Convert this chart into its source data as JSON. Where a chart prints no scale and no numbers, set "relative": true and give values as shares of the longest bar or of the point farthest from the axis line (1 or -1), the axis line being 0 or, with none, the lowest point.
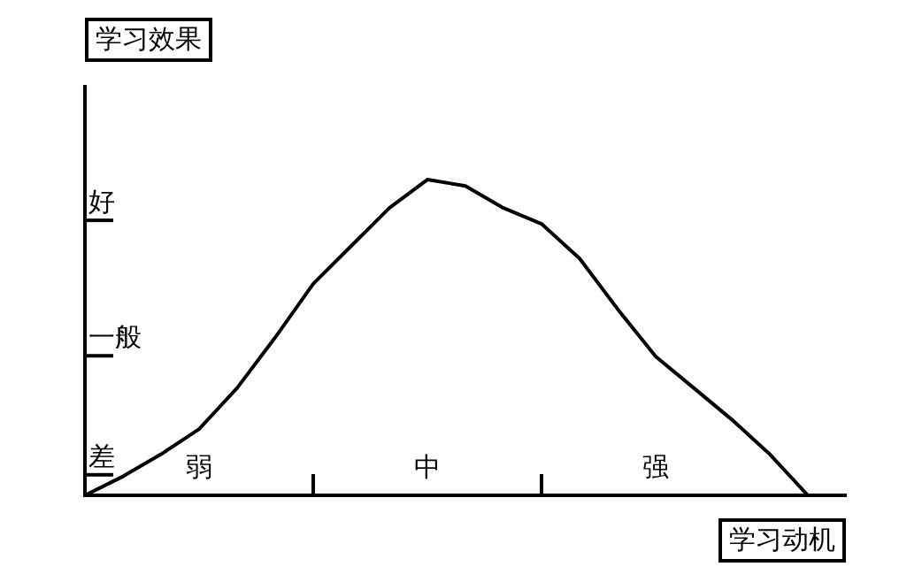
{
  "chart_data": {
    "type": "line",
    "relative": true,
    "xlabel": "学习动机",
    "ylabel": "学习效果",
    "categories": [
      null,
      null,
      null,
      "弱",
      null,
      null,
      null,
      null,
      null,
      "中",
      null,
      null,
      null,
      null,
      null,
      "强",
      null,
      null,
      null,
      null,
      null
    ],
    "series": [
      {
        "color": "#000000",
        "values": [
          0,
          0.06,
          0.13,
          0.21,
          0.34,
          0.5,
          0.67,
          0.79,
          0.91,
          1,
          0.98,
          0.91,
          0.86,
          0.75,
          0.59,
          0.44,
          0.34,
          0.24,
          0.13,
          0,
          null
        ]
      }
    ],
    "annotations": [
      "好",
      "一般",
      "差"
    ],
    "grid": false,
    "legend": false,
    "marker": "none",
    "line_style": "solid"
  }
}
